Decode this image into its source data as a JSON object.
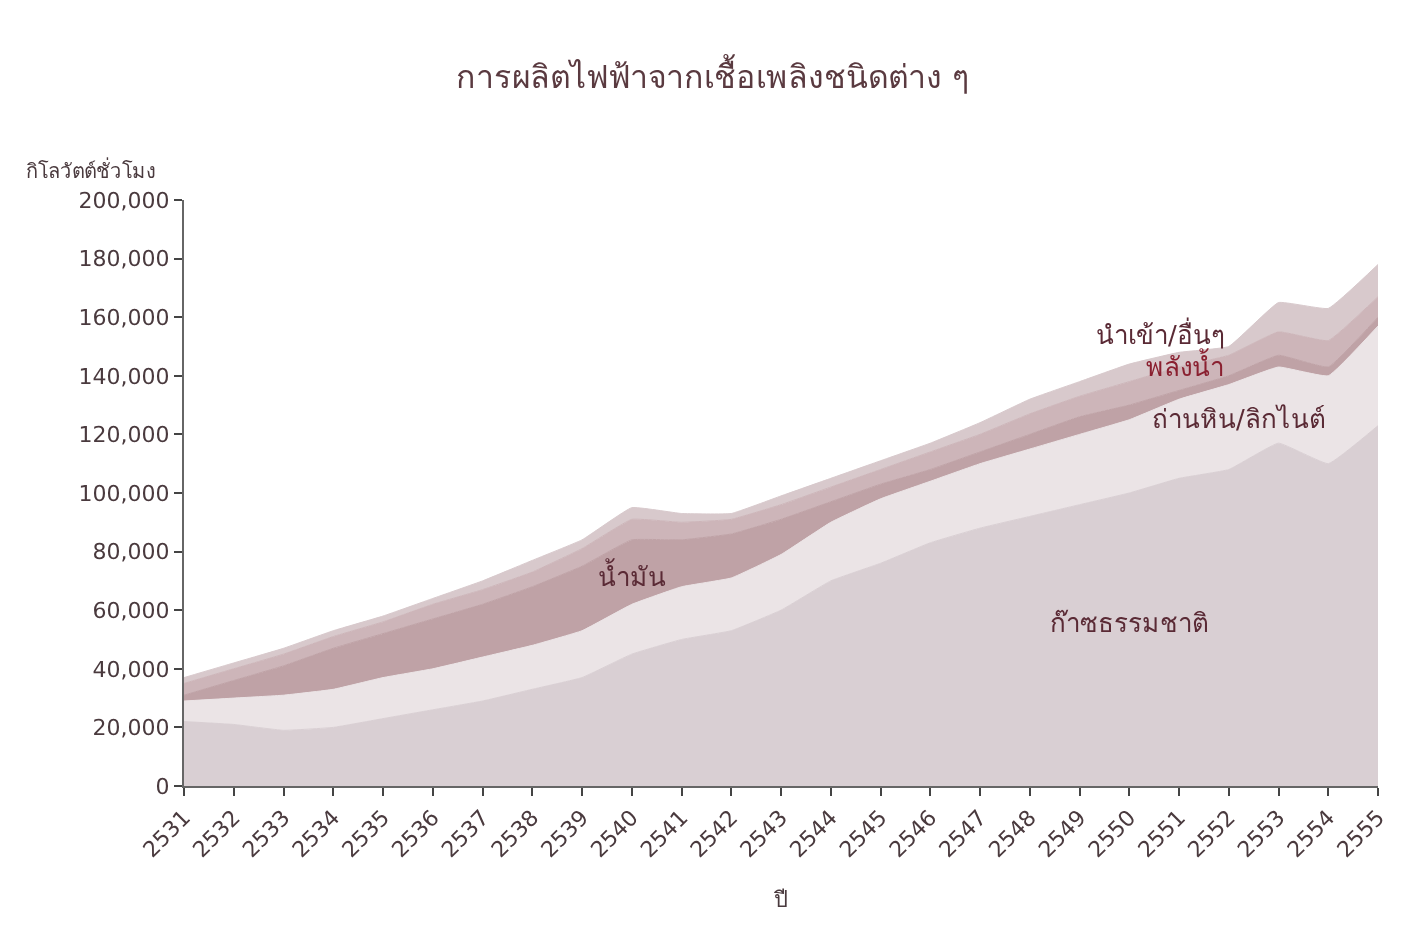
{
  "chart_data": {
    "type": "area",
    "stacked": true,
    "title": "การผลิตไฟฟ้าจากเชื้อเพลิงชนิดต่าง ๆ",
    "xlabel": "ปี",
    "ylabel": "กิโลวัตต์ชั่วโมง",
    "categories": [
      "2531",
      "2532",
      "2533",
      "2534",
      "2535",
      "2536",
      "2537",
      "2538",
      "2539",
      "2540",
      "2541",
      "2542",
      "2543",
      "2544",
      "2545",
      "2546",
      "2547",
      "2548",
      "2549",
      "2550",
      "2551",
      "2552",
      "2553",
      "2554",
      "2555"
    ],
    "series": [
      {
        "name": "ก๊าซธรรมชาติ",
        "color": "#d9cfd3",
        "values": [
          22000,
          21000,
          19000,
          20000,
          23000,
          26000,
          29000,
          33000,
          37000,
          45000,
          50000,
          53000,
          60000,
          70000,
          76000,
          83000,
          88000,
          92000,
          96000,
          100000,
          105000,
          108000,
          117000,
          110000,
          123000
        ]
      },
      {
        "name": "ถ่านหิน/ลิกไนต์",
        "color": "#ebe4e6",
        "values": [
          7000,
          9000,
          12000,
          13000,
          14000,
          14000,
          15000,
          15000,
          16000,
          17000,
          18000,
          18000,
          19000,
          20000,
          22000,
          21000,
          22000,
          23000,
          24000,
          25000,
          27000,
          29000,
          26000,
          30000,
          34000
        ]
      },
      {
        "name": "น้ำมัน",
        "color": "#bfa2a6",
        "values": [
          2000,
          6000,
          10000,
          14000,
          15000,
          17000,
          18000,
          20000,
          22000,
          22000,
          16000,
          15000,
          12000,
          7000,
          5000,
          4000,
          4000,
          5000,
          6000,
          5000,
          3000,
          3000,
          4000,
          3000,
          3000
        ]
      },
      {
        "name": "พลังน้ำ",
        "color": "#cdb5b9",
        "values": [
          4000,
          4000,
          4000,
          4000,
          4000,
          5000,
          5000,
          5000,
          6000,
          7000,
          6000,
          5000,
          5000,
          5000,
          5000,
          6000,
          6000,
          7000,
          7000,
          8000,
          8000,
          7000,
          8000,
          9000,
          7000
        ]
      },
      {
        "name": "นำเข้า/อื่นๆ",
        "color": "#d8c9cc",
        "values": [
          2000,
          2000,
          2000,
          2000,
          2000,
          2000,
          3000,
          4000,
          3000,
          4000,
          3000,
          2000,
          3000,
          3000,
          3000,
          3000,
          4000,
          5000,
          5000,
          6000,
          5000,
          3000,
          10000,
          11000,
          11000
        ]
      }
    ],
    "ylim": [
      0,
      200000
    ],
    "yticks": [
      {
        "value": 0,
        "label": "0"
      },
      {
        "value": 20000,
        "label": "20,000"
      },
      {
        "value": 40000,
        "label": "40,000"
      },
      {
        "value": 60000,
        "label": "60,000"
      },
      {
        "value": 80000,
        "label": "80,000"
      },
      {
        "value": 100000,
        "label": "100,000"
      },
      {
        "value": 120000,
        "label": "120,000"
      },
      {
        "value": 140000,
        "label": "140,000"
      },
      {
        "value": 160000,
        "label": "160,000"
      },
      {
        "value": 180000,
        "label": "180,000"
      },
      {
        "value": 200000,
        "label": "200,000"
      }
    ],
    "legend": false
  }
}
